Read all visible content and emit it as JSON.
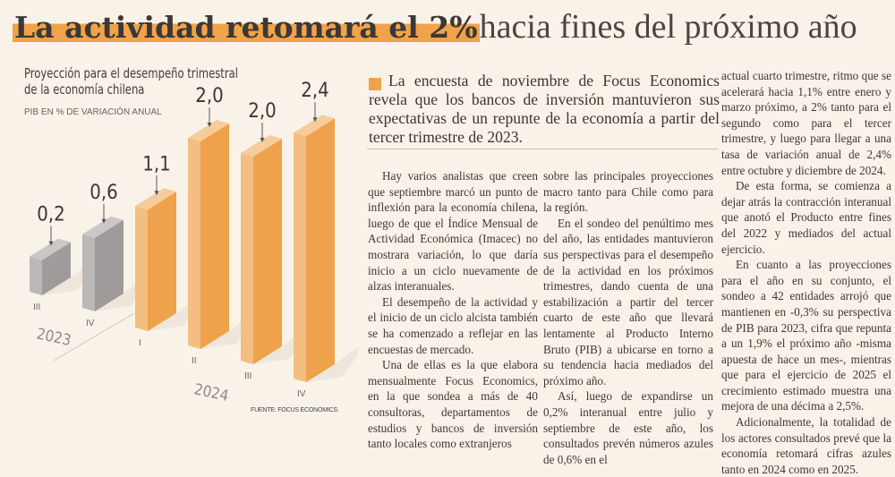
{
  "headline": {
    "bold": "La actividad retomará el 2%",
    "light": "hacia fines del próximo año",
    "accent": "#f0a34a"
  },
  "chart": {
    "title_line1": "Proyección para el desempeño trimestral",
    "title_line2": "de la economía chilena",
    "subtitle": "PIB EN % DE VARIACIÓN ANUAL",
    "source": "FUENTE: FOCUS ECONOMICS."
  },
  "chart_data": {
    "type": "bar",
    "title": "Proyección para el desempeño trimestral de la economía chilena",
    "ylabel": "PIB EN % DE VARIACIÓN ANUAL",
    "categories": [
      "III",
      "IV",
      "I",
      "II",
      "III",
      "IV"
    ],
    "years": [
      {
        "label": "2023",
        "quarters": [
          "III",
          "IV"
        ]
      },
      {
        "label": "2024",
        "quarters": [
          "I",
          "II",
          "III",
          "IV"
        ]
      }
    ],
    "values": [
      0.2,
      0.6,
      1.1,
      2.0,
      2.0,
      2.4
    ],
    "value_labels": [
      "0,2",
      "0,6",
      "1,1",
      "2,0",
      "2,0",
      "2,4"
    ],
    "colors": {
      "2023": "#9e9b9a",
      "2024": "#eea24b"
    },
    "grid": false
  },
  "lead": "La encuesta de noviembre de Focus Economics revela que los bancos de inversión mantuvieron sus expectativas de un repunte de la economía a partir del tercer trimestre de 2023.",
  "body": {
    "col1": [
      "Hay varios analistas que creen que septiembre marcó un punto de inflexión para la economía chilena, luego de que el Índice Mensual de Actividad Económica (Imacec) no mostrara variación, lo que daría inicio a un ciclo nuevamente de alzas interanuales.",
      "El desempeño de la actividad y el inicio de un ciclo alcista también se ha comenzado a reflejar en las encuestas de mercado.",
      "Una de ellas es la que elabora mensualmente Focus Economics, en la que sondea a más de 40 consultoras, departamentos de estudios y bancos de inversión tanto locales como extranjeros"
    ],
    "col2": [
      "sobre las principales proyecciones macro tanto para Chile como para la región.",
      "En el sondeo del penúltimo mes del año, las entidades mantuvieron sus perspectivas para el desempeño de la actividad en los próximos trimestres, dando cuenta de una estabilización a partir del tercer cuarto de este año que llevará lentamente al Producto Interno Bruto (PIB) a ubicarse en torno a su tendencia hacia mediados del próximo año.",
      "Así, luego de expandirse un 0,2% interanual entre julio y septiembre de este año, los consultados prevén números azules de 0,6% en el"
    ],
    "col3": [
      "actual cuarto trimestre, ritmo que se acelerará hacia 1,1% entre enero y marzo próximo, a 2% tanto para el segundo como para el tercer trimestre, y luego para llegar a una tasa de variación anual de 2,4% entre octubre y diciembre de 2024.",
      "De esta forma, se comienza a dejar atrás la contracción interanual que anotó el Producto entre fines del 2022 y mediados del actual ejercicio.",
      "En cuanto a las proyecciones para el año en su conjunto, el sondeo a 42 entidades arrojó que mantienen en -0,3% su perspectiva de PIB para 2023, cifra que repunta a un 1,9% el próximo año -misma apuesta de hace un mes-, mientras que para el ejercicio de 2025 el crecimiento estimado muestra una mejora de una décima a 2,5%.",
      "Adicionalmente, la totalidad de los actores consultados prevé que la economía retomará cifras azules tanto en 2024 como en 2025."
    ]
  }
}
